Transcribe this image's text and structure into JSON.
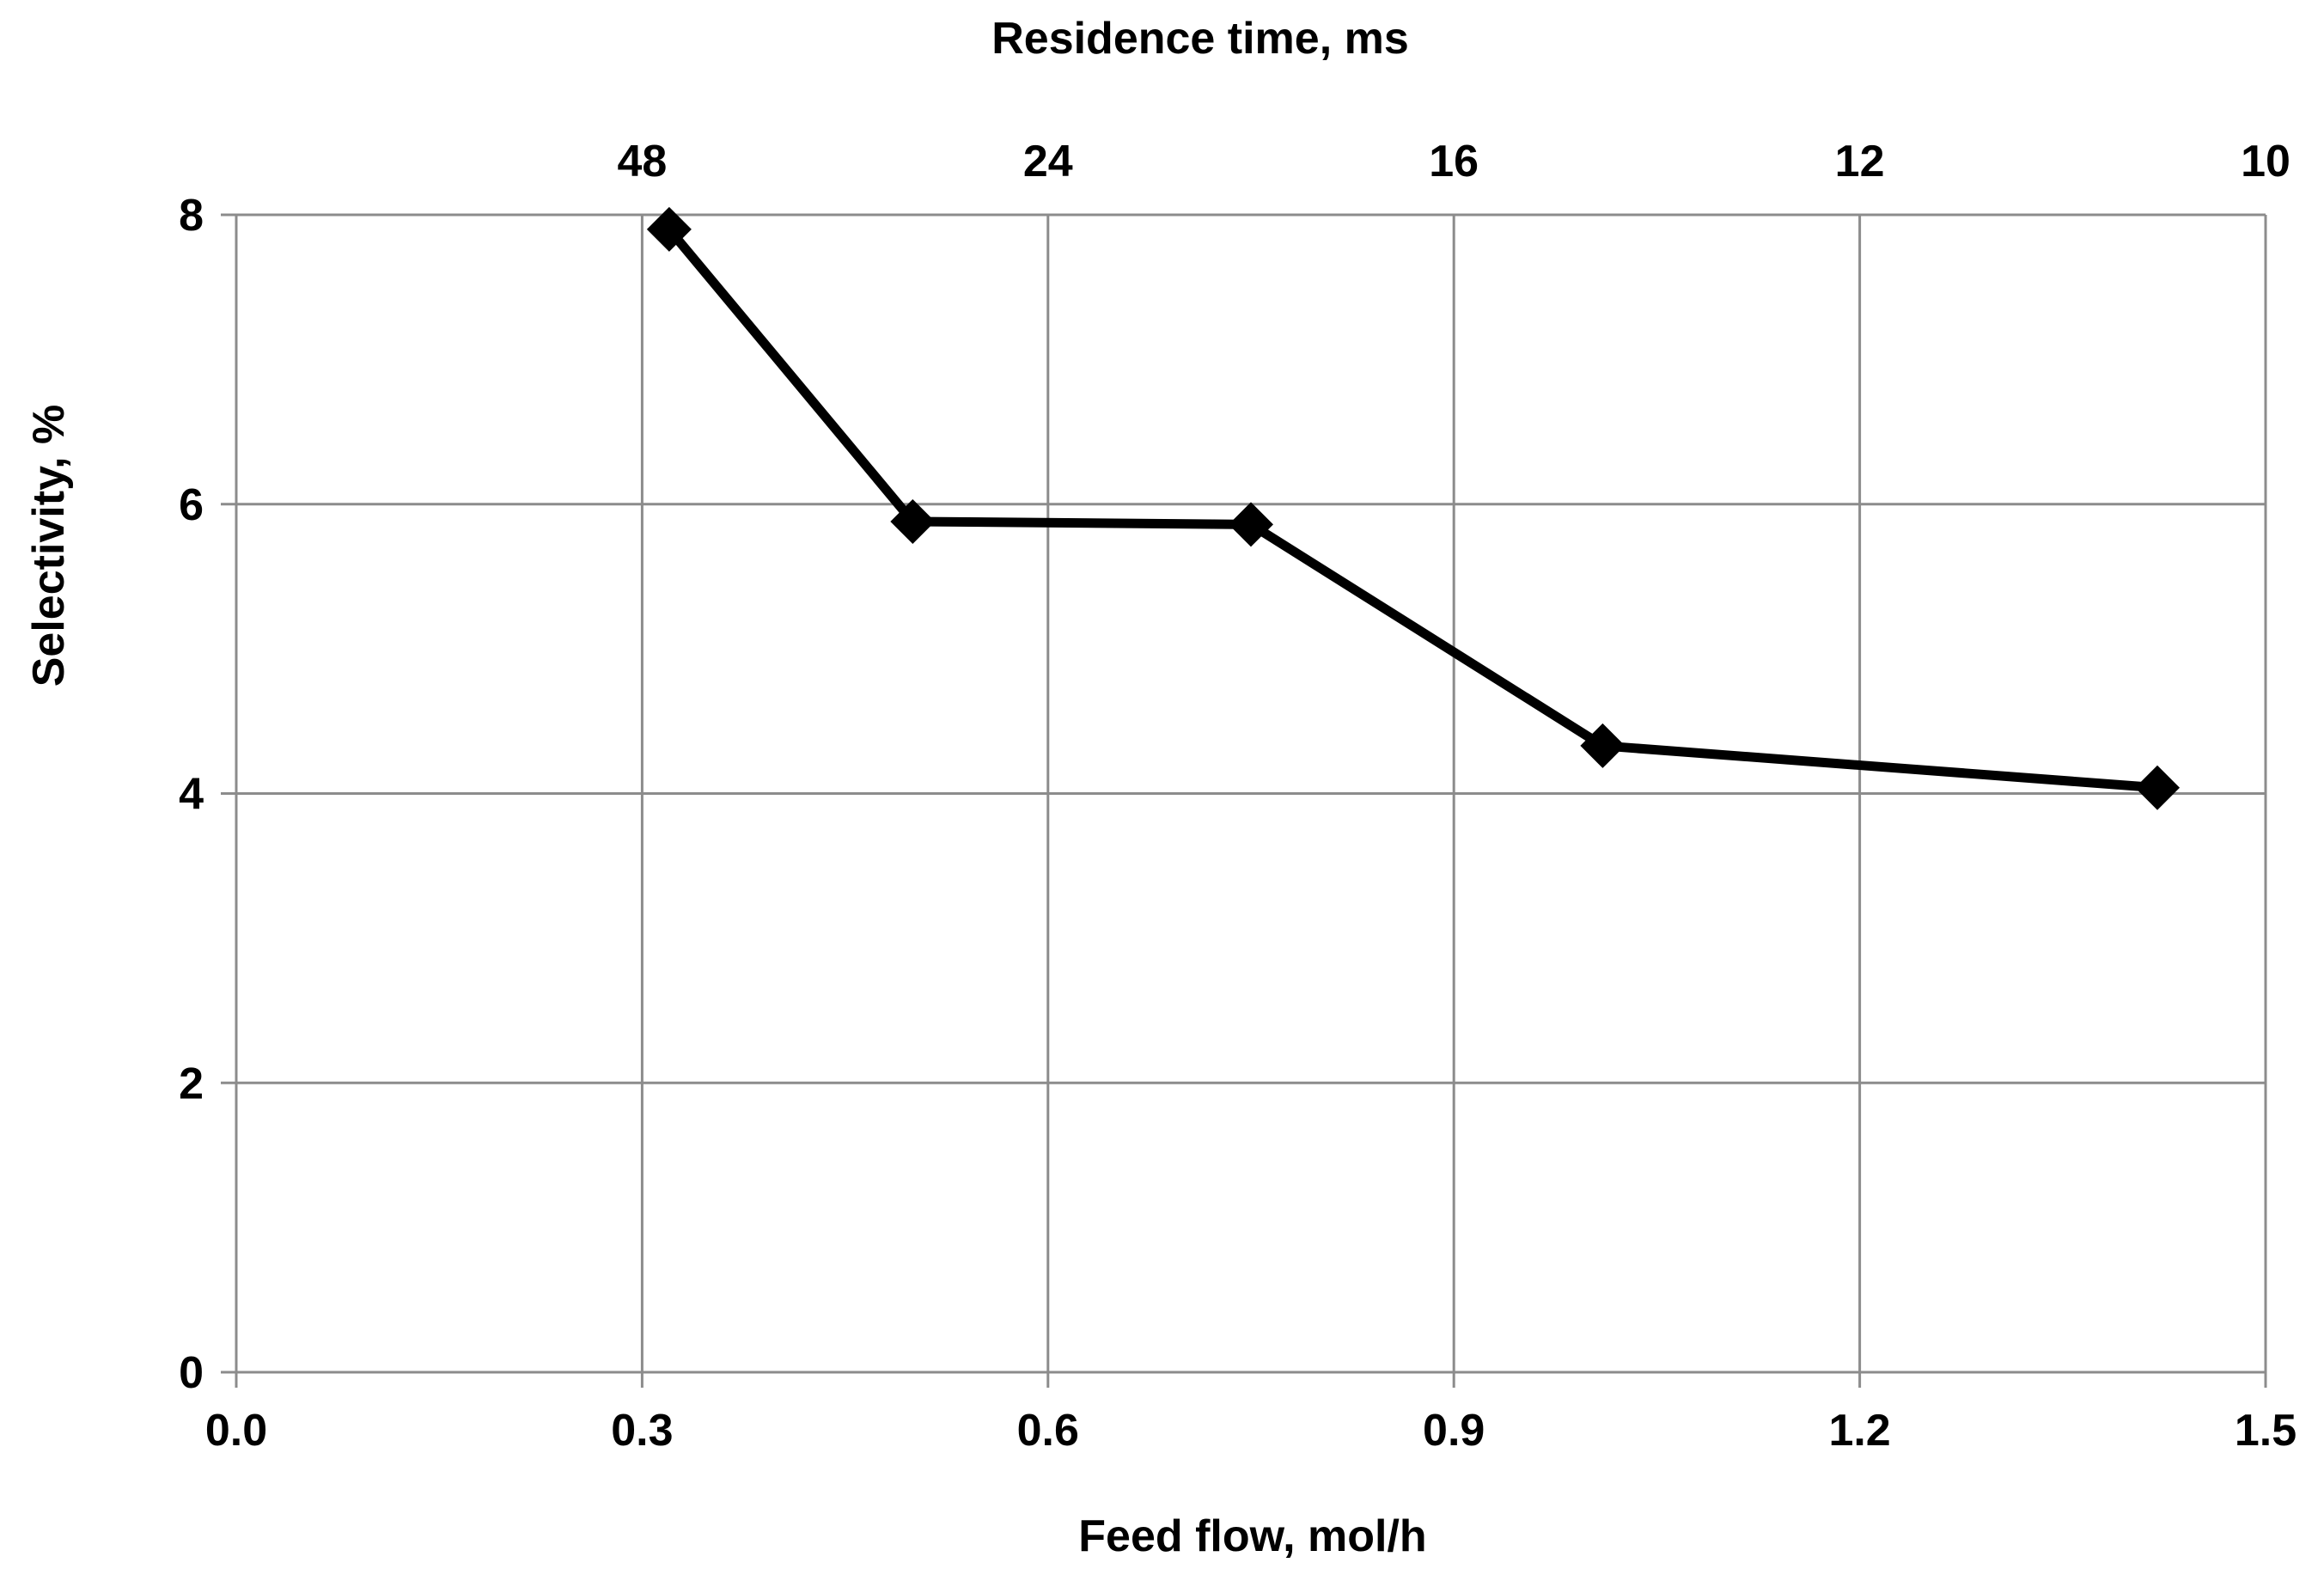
{
  "chart_data": {
    "type": "line",
    "title": "",
    "xlabel": "Feed flow, mol/h",
    "ylabel": "Selectivity, %",
    "secondary_xlabel": "Residence time, ms",
    "xlim": [
      0,
      1.5
    ],
    "ylim": [
      0,
      8
    ],
    "x_ticks": [
      "0.0",
      "0.3",
      "0.6",
      "0.9",
      "1.2",
      "1.5"
    ],
    "y_ticks": [
      "0",
      "2",
      "4",
      "6",
      "8"
    ],
    "secondary_x_ticks": [
      {
        "x": 0.3,
        "label": "48"
      },
      {
        "x": 0.6,
        "label": "24"
      },
      {
        "x": 0.9,
        "label": "16"
      },
      {
        "x": 1.2,
        "label": "12"
      },
      {
        "x": 1.5,
        "label": "10"
      }
    ],
    "grid": true,
    "series": [
      {
        "name": "Selectivity",
        "marker": "diamond",
        "color": "#000000",
        "x": [
          0.32,
          0.5,
          0.75,
          1.01,
          1.42
        ],
        "y": [
          7.9,
          5.88,
          5.86,
          4.33,
          4.04
        ]
      }
    ]
  }
}
